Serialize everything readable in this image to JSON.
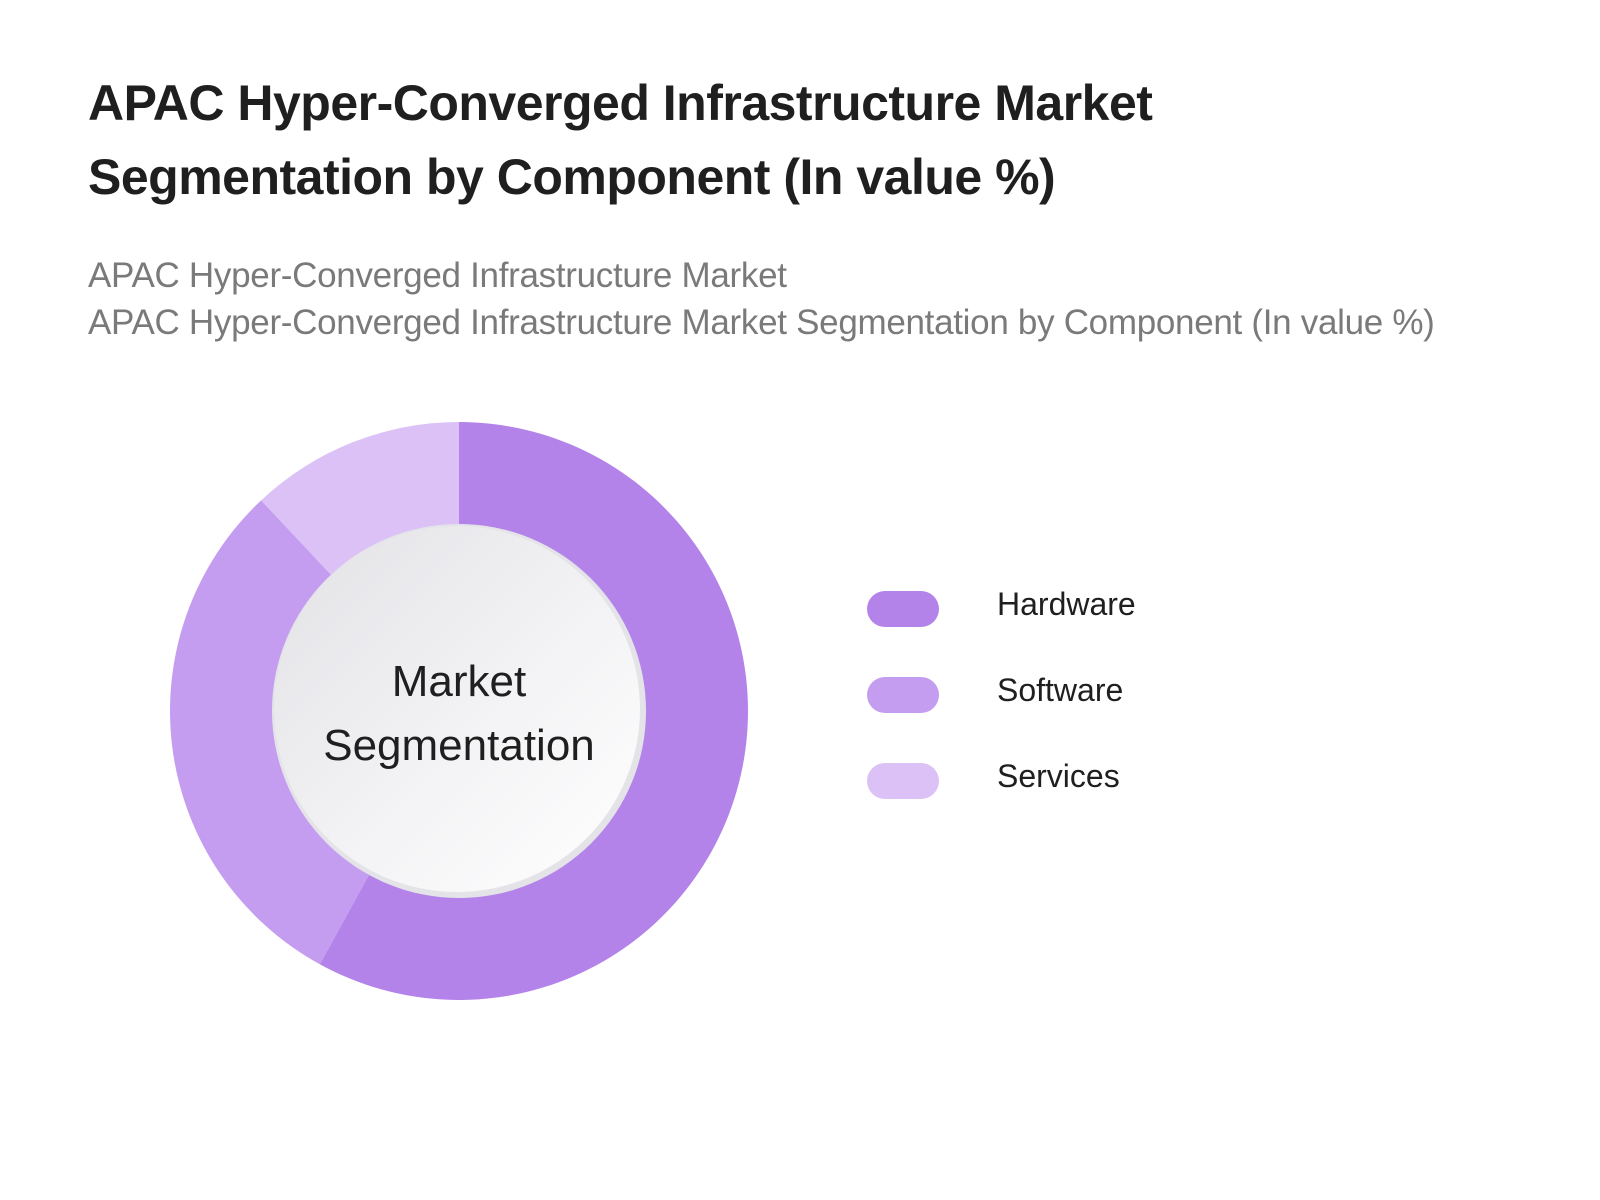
{
  "title": "APAC Hyper-Converged Infrastructure Market Segmentation by Component (In value %)",
  "subtitle": {
    "line1": "APAC Hyper-Converged Infrastructure Market",
    "line2": "APAC Hyper-Converged Infrastructure Market Segmentation by Component (In value %)"
  },
  "center_label": {
    "line1": "Market",
    "line2": "Segmentation"
  },
  "legend": [
    {
      "label": "Hardware",
      "color": "#b383ea"
    },
    {
      "label": "Software",
      "color": "#c59df0"
    },
    {
      "label": "Services",
      "color": "#dbc1f6"
    }
  ],
  "chart_data": {
    "type": "pie",
    "subtype": "donut",
    "title": "APAC Hyper-Converged Infrastructure Market Segmentation by Component (In value %)",
    "center_text": "Market Segmentation",
    "categories": [
      "Hardware",
      "Software",
      "Services"
    ],
    "values": [
      58,
      30,
      12
    ],
    "unit": "%",
    "colors": [
      "#b383ea",
      "#c59df0",
      "#dbc1f6"
    ],
    "start_angle": "12 o'clock, clockwise",
    "legend_position": "right",
    "data_labels": false
  }
}
